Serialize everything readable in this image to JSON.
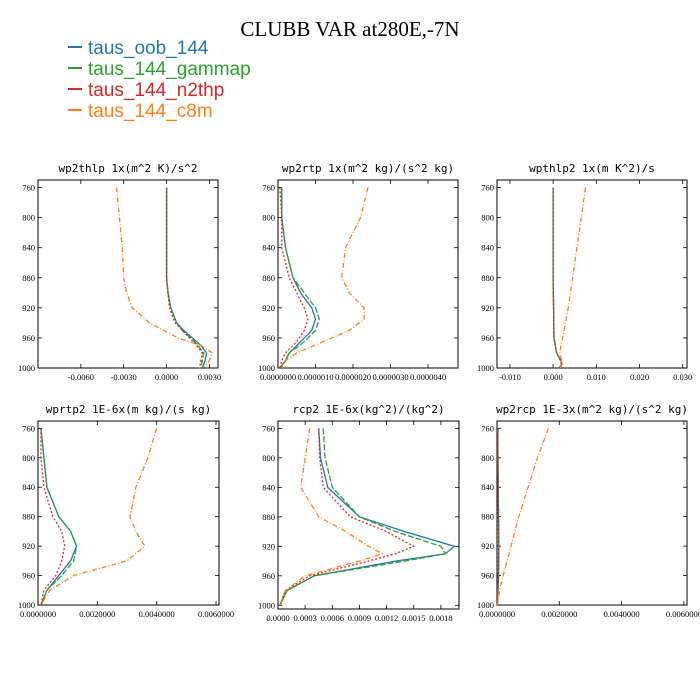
{
  "title": "CLUBB VAR at280E,-7N",
  "colors": {
    "taus_oob_144": "#1f77b4",
    "taus_144_gammap": "#2ca02c",
    "taus_144_n2thp": "#d62728",
    "taus_144_c8m": "#ff7f0e"
  },
  "legend": [
    {
      "label": "taus_oob_144",
      "color": "#1f77b4"
    },
    {
      "label": "taus_144_gammap",
      "color": "#2ca02c"
    },
    {
      "label": "taus_144_n2thp",
      "color": "#d62728"
    },
    {
      "label": "taus_144_c8m",
      "color": "#ff7f0e"
    }
  ],
  "chart_data": [
    {
      "type": "line",
      "title": "wp2thlp  1x(m^2 K)/s^2",
      "xlim": [
        -0.009,
        0.0036
      ],
      "ylim": [
        750,
        1000
      ],
      "xticks": [
        {
          "v": -0.006,
          "label": "-0.0060"
        },
        {
          "v": -0.003,
          "label": "-0.0030"
        },
        {
          "v": 0.0,
          "label": "0.0000"
        },
        {
          "v": 0.003,
          "label": "0.0030"
        }
      ],
      "yticks": [
        760,
        800,
        840,
        880,
        920,
        960,
        1000
      ],
      "y": [
        760,
        800,
        840,
        880,
        900,
        920,
        940,
        950,
        960,
        970,
        980,
        990,
        1000
      ],
      "series": [
        {
          "name": "taus_oob_144",
          "values": [
            0.0,
            0.0,
            0.0,
            0.0,
            0.0001,
            0.0003,
            0.0007,
            0.0012,
            0.0018,
            0.0024,
            0.0028,
            0.0027,
            0.0025
          ]
        },
        {
          "name": "taus_144_gammap",
          "values": [
            0.0,
            0.0,
            0.0,
            0.0,
            0.0001,
            0.0003,
            0.0007,
            0.0011,
            0.0017,
            0.0022,
            0.0026,
            0.0025,
            0.0024
          ]
        },
        {
          "name": "taus_144_n2thp",
          "values": [
            0.0,
            0.0,
            0.0,
            0.0,
            0.0001,
            0.0002,
            0.0006,
            0.0011,
            0.0016,
            0.0021,
            0.0025,
            0.0024,
            0.0023
          ]
        },
        {
          "name": "taus_144_c8m",
          "values": [
            -0.0035,
            -0.0033,
            -0.0031,
            -0.003,
            -0.0028,
            -0.0024,
            -0.0012,
            -0.0002,
            0.0008,
            0.0024,
            0.0032,
            0.003,
            0.0026
          ]
        }
      ]
    },
    {
      "type": "line",
      "title": "wp2rtp  1x(m^2 kg)/(s^2 kg)",
      "xlim": [
        0.0,
        4.8e-06
      ],
      "ylim": [
        750,
        1000
      ],
      "xticks": [
        {
          "v": 0.0,
          "label": "0.0000000"
        },
        {
          "v": 1e-06,
          "label": "0.0000010"
        },
        {
          "v": 2e-06,
          "label": "0.0000020"
        },
        {
          "v": 3e-06,
          "label": "0.0000030"
        },
        {
          "v": 4e-06,
          "label": "0.0000040"
        }
      ],
      "yticks": [
        760,
        800,
        840,
        880,
        920,
        960,
        1000
      ],
      "y": [
        760,
        800,
        840,
        880,
        900,
        920,
        935,
        950,
        965,
        980,
        990,
        1000
      ],
      "series": [
        {
          "name": "taus_oob_144",
          "values": [
            1e-07,
            1e-07,
            2e-07,
            4e-07,
            6e-07,
            9e-07,
            1e-06,
            9e-07,
            6e-07,
            3e-07,
            2e-07,
            5e-08
          ]
        },
        {
          "name": "taus_144_gammap",
          "values": [
            1e-07,
            1e-07,
            2e-07,
            4e-07,
            7e-07,
            1e-06,
            1.1e-06,
            1e-06,
            7e-07,
            3e-07,
            2e-07,
            5e-08
          ]
        },
        {
          "name": "taus_144_n2thp",
          "values": [
            5e-08,
            1e-07,
            1e-07,
            3e-07,
            5e-07,
            7e-07,
            8e-07,
            7e-07,
            5e-07,
            2e-07,
            1e-07,
            5e-08
          ]
        },
        {
          "name": "taus_144_c8m",
          "values": [
            2.4e-06,
            2.2e-06,
            1.8e-06,
            1.7e-06,
            1.9e-06,
            2.3e-06,
            2.3e-06,
            1.9e-06,
            1.2e-06,
            5e-07,
            2e-07,
            1e-07
          ]
        }
      ]
    },
    {
      "type": "line",
      "title": "wpthlp2  1x(m K^2)/s",
      "xlim": [
        -0.013,
        0.031
      ],
      "ylim": [
        750,
        1000
      ],
      "xticks": [
        {
          "v": -0.01,
          "label": "-0.010"
        },
        {
          "v": 0.0,
          "label": "0.000"
        },
        {
          "v": 0.01,
          "label": "0.010"
        },
        {
          "v": 0.02,
          "label": "0.020"
        },
        {
          "v": 0.03,
          "label": "0.030"
        }
      ],
      "yticks": [
        760,
        800,
        840,
        880,
        920,
        960,
        1000
      ],
      "y": [
        760,
        800,
        840,
        880,
        920,
        960,
        980,
        990,
        995,
        1000
      ],
      "series": [
        {
          "name": "taus_oob_144",
          "values": [
            0.0,
            0.0,
            0.0,
            0.0,
            0.0001,
            0.0002,
            0.0008,
            0.0018,
            0.002,
            0.0015
          ]
        },
        {
          "name": "taus_144_gammap",
          "values": [
            0.0,
            0.0,
            0.0,
            0.0,
            0.0001,
            0.0002,
            0.0008,
            0.0018,
            0.002,
            0.0015
          ]
        },
        {
          "name": "taus_144_n2thp",
          "values": [
            0.0,
            0.0,
            0.0,
            0.0,
            0.0001,
            0.0002,
            0.0008,
            0.0017,
            0.0019,
            0.0014
          ]
        },
        {
          "name": "taus_144_c8m",
          "values": [
            0.0075,
            0.0065,
            0.0055,
            0.0045,
            0.0035,
            0.0022,
            0.0015,
            0.002,
            0.0021,
            0.0016
          ]
        }
      ]
    },
    {
      "type": "line",
      "title": "wprtp2  1E-6x(m kg)/(s kg)",
      "xlim": [
        0.0,
        0.0061
      ],
      "ylim": [
        750,
        1000
      ],
      "xticks": [
        {
          "v": 0.0,
          "label": "0.0000000"
        },
        {
          "v": 0.002,
          "label": "0.0020000"
        },
        {
          "v": 0.004,
          "label": "0.0040000"
        },
        {
          "v": 0.006,
          "label": "0.0060000"
        }
      ],
      "yticks": [
        760,
        800,
        840,
        880,
        920,
        960,
        1000
      ],
      "y": [
        760,
        800,
        840,
        880,
        900,
        920,
        940,
        960,
        980,
        1000
      ],
      "series": [
        {
          "name": "taus_oob_144",
          "values": [
            0.0001,
            0.0002,
            0.0003,
            0.0007,
            0.0011,
            0.0013,
            0.0011,
            0.0007,
            0.0003,
            0.0001
          ]
        },
        {
          "name": "taus_144_gammap",
          "values": [
            0.0001,
            0.0002,
            0.0003,
            0.0007,
            0.0011,
            0.0013,
            0.0012,
            0.0008,
            0.0003,
            0.0001
          ]
        },
        {
          "name": "taus_144_n2thp",
          "values": [
            0.0001,
            0.0001,
            0.0002,
            0.0005,
            0.0008,
            0.0009,
            0.0008,
            0.0006,
            0.0002,
            0.0001
          ]
        },
        {
          "name": "taus_144_c8m",
          "values": [
            0.004,
            0.0037,
            0.0033,
            0.0031,
            0.0033,
            0.0036,
            0.003,
            0.0012,
            0.0004,
            0.0001
          ]
        }
      ]
    },
    {
      "type": "line",
      "title": "rcp2  1E-6x(kg^2)/(kg^2)",
      "xlim": [
        0.0,
        0.002
      ],
      "ylim": [
        750,
        1005
      ],
      "xticks": [
        {
          "v": 0.0,
          "label": "0.0000"
        },
        {
          "v": 0.0003,
          "label": "0.0003"
        },
        {
          "v": 0.0006,
          "label": "0.0006"
        },
        {
          "v": 0.0009,
          "label": "0.0009"
        },
        {
          "v": 0.0012,
          "label": "0.0012"
        },
        {
          "v": 0.0015,
          "label": "0.0015"
        },
        {
          "v": 0.0018,
          "label": "0.0018"
        }
      ],
      "yticks": [
        760,
        800,
        840,
        880,
        920,
        960,
        1000
      ],
      "y": [
        760,
        800,
        840,
        880,
        900,
        920,
        930,
        940,
        960,
        980,
        1000
      ],
      "series": [
        {
          "name": "taus_oob_144",
          "values": [
            0.00045,
            0.00047,
            0.00055,
            0.0009,
            0.0014,
            0.00195,
            0.00185,
            0.0013,
            0.0004,
            0.0001,
            2e-05
          ]
        },
        {
          "name": "taus_144_gammap",
          "values": [
            0.0005,
            0.00052,
            0.0006,
            0.0009,
            0.0013,
            0.0018,
            0.00185,
            0.0014,
            0.0004,
            0.0001,
            2e-05
          ]
        },
        {
          "name": "taus_144_n2thp",
          "values": [
            0.00045,
            0.00046,
            0.0005,
            0.0008,
            0.0012,
            0.0015,
            0.0013,
            0.001,
            0.00035,
            8e-05,
            2e-05
          ]
        },
        {
          "name": "taus_144_c8m",
          "values": [
            0.00035,
            0.0003,
            0.00025,
            0.00045,
            0.00075,
            0.001,
            0.00115,
            0.0009,
            0.0003,
            8e-05,
            2e-05
          ]
        }
      ]
    },
    {
      "type": "line",
      "title": "wp2rcp  1E-3x(m^2 kg)/(s^2 kg)",
      "xlim": [
        0.0,
        0.0061
      ],
      "ylim": [
        750,
        1000
      ],
      "xticks": [
        {
          "v": 0.0,
          "label": "0.0000000"
        },
        {
          "v": 0.002,
          "label": "0.0020000"
        },
        {
          "v": 0.004,
          "label": "0.0040000"
        },
        {
          "v": 0.006,
          "label": "0.0060000"
        }
      ],
      "yticks": [
        760,
        800,
        840,
        880,
        920,
        960,
        1000
      ],
      "y": [
        760,
        800,
        840,
        880,
        920,
        960,
        980,
        1000
      ],
      "series": [
        {
          "name": "taus_oob_144",
          "values": [
            3e-05,
            3e-05,
            4e-05,
            5e-05,
            6e-05,
            5e-05,
            3e-05,
            1e-05
          ]
        },
        {
          "name": "taus_144_gammap",
          "values": [
            3e-05,
            3e-05,
            4e-05,
            5e-05,
            6e-05,
            5e-05,
            3e-05,
            1e-05
          ]
        },
        {
          "name": "taus_144_n2thp",
          "values": [
            2e-05,
            3e-05,
            3e-05,
            4e-05,
            5e-05,
            4e-05,
            2e-05,
            1e-05
          ]
        },
        {
          "name": "taus_144_c8m",
          "values": [
            0.00165,
            0.0013,
            0.001,
            0.0007,
            0.00045,
            0.0002,
            8e-05,
            2e-05
          ]
        }
      ]
    }
  ]
}
